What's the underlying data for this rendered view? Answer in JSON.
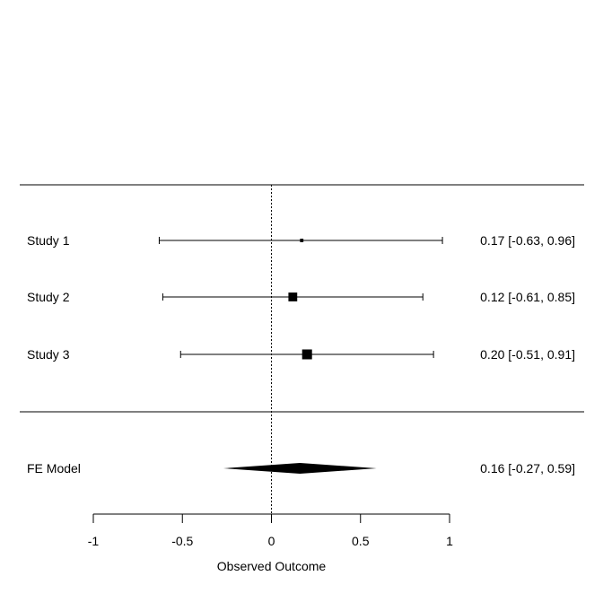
{
  "chart_data": {
    "type": "forest",
    "xlabel": "Observed Outcome",
    "xlim": [
      -1,
      1
    ],
    "xticks": [
      {
        "value": -1,
        "label": "-1"
      },
      {
        "value": -0.5,
        "label": "-0.5"
      },
      {
        "value": 0,
        "label": "0"
      },
      {
        "value": 0.5,
        "label": "0.5"
      },
      {
        "value": 1,
        "label": "1"
      }
    ],
    "reference_line": 0,
    "studies": [
      {
        "label": "Study 1",
        "estimate": 0.17,
        "ci_lower": -0.63,
        "ci_upper": 0.96,
        "summary": "0.17 [-0.63, 0.96]",
        "weight": 0.1
      },
      {
        "label": "Study 2",
        "estimate": 0.12,
        "ci_lower": -0.61,
        "ci_upper": 0.85,
        "summary": "0.12 [-0.61, 0.85]",
        "weight": 0.85
      },
      {
        "label": "Study 3",
        "estimate": 0.2,
        "ci_lower": -0.51,
        "ci_upper": 0.91,
        "summary": "0.20 [-0.51, 0.91]",
        "weight": 1.0
      }
    ],
    "model": {
      "label": "FE Model",
      "estimate": 0.16,
      "ci_lower": -0.27,
      "ci_upper": 0.59,
      "summary": "0.16 [-0.27, 0.59]"
    },
    "grid": false
  }
}
